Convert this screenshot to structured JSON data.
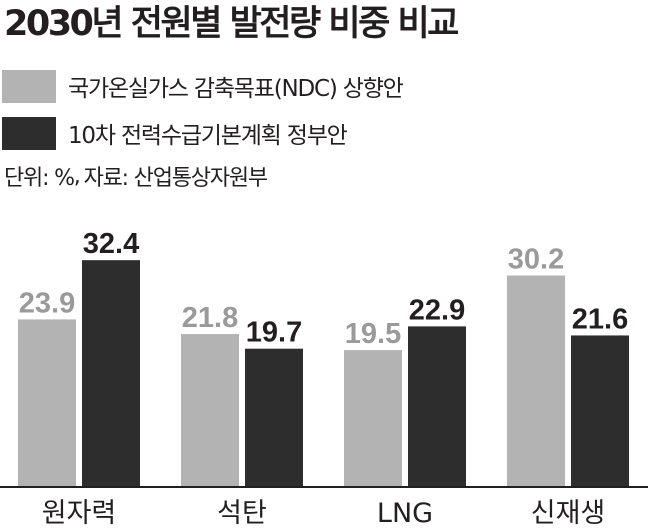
{
  "chart_data": {
    "type": "bar",
    "title": "2030년 전원별 발전량 비중 비교",
    "unit": "단위: %",
    "source": "자료: 산업통상자원부",
    "categories": [
      "원자력",
      "석탄",
      "LNG",
      "신재생"
    ],
    "series": [
      {
        "name": "국가온실가스 감축목표(NDC) 상향안",
        "color": "#b3b3b3",
        "label_color": "#9a9a9a",
        "values": [
          23.9,
          21.8,
          19.5,
          30.2
        ]
      },
      {
        "name": "10차 전력수급기본계획 정부안",
        "color": "#2d2d2d",
        "label_color": "#231f20",
        "values": [
          32.4,
          19.7,
          22.9,
          21.6
        ]
      }
    ],
    "ylim": [
      0,
      40
    ],
    "grid": false,
    "legend_position": "top-left"
  }
}
